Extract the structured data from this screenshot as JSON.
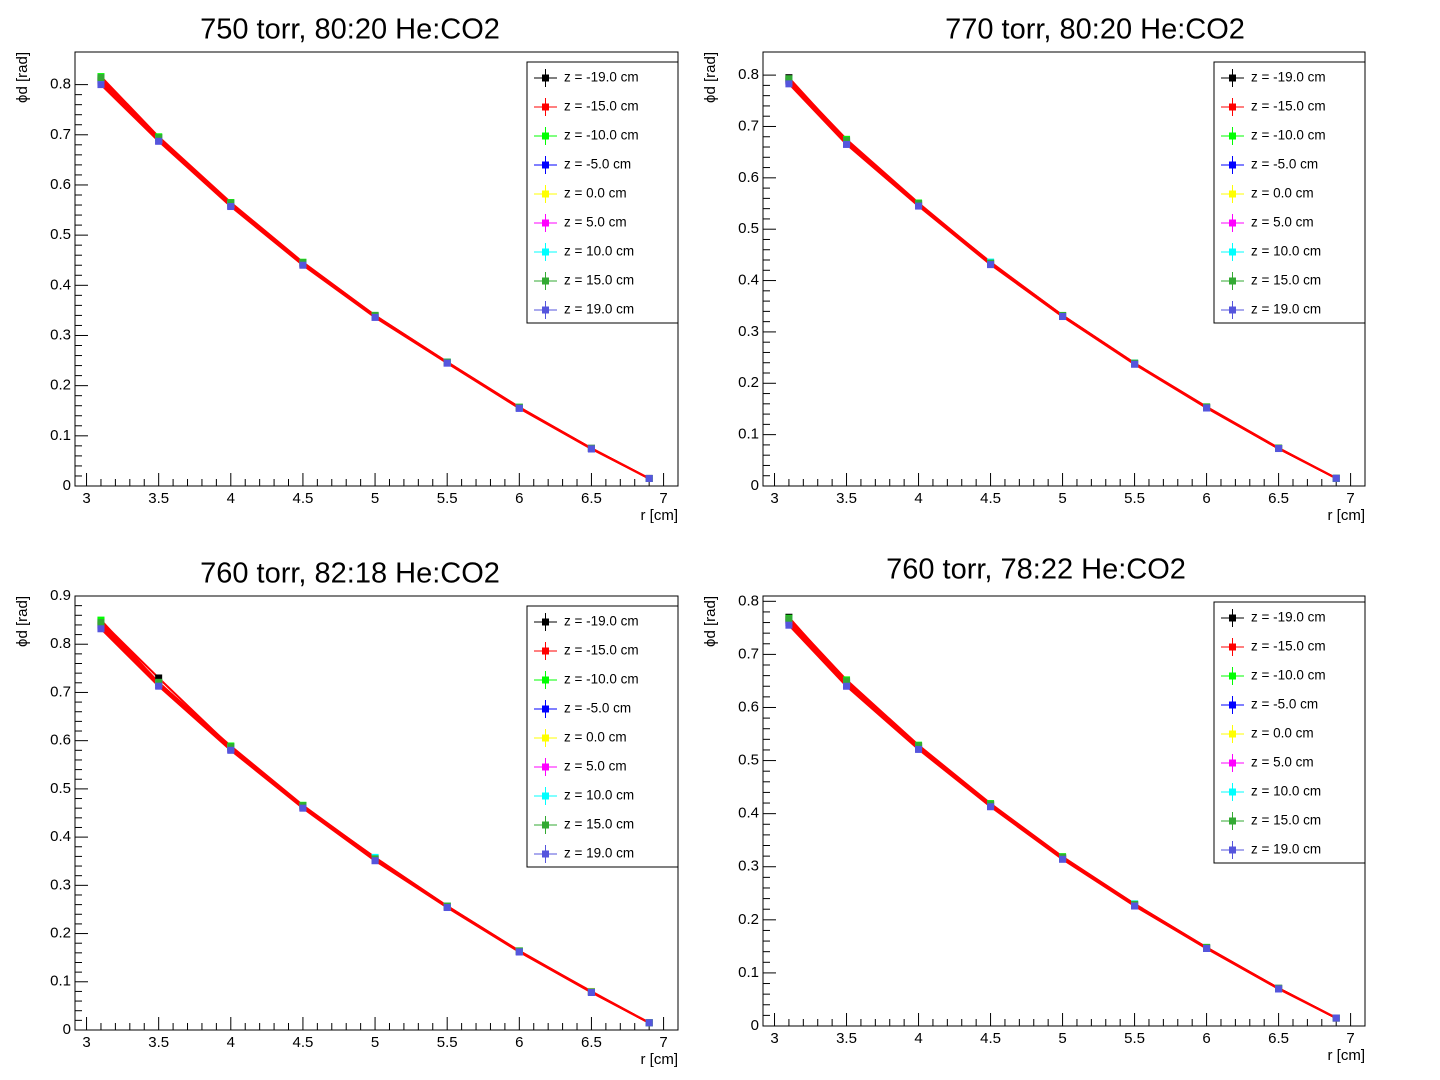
{
  "chart_data": [
    {
      "type": "scatter",
      "title": "750 torr, 80:20 He:CO2",
      "x_label": "r [cm]",
      "y_label": "ϕd [rad]",
      "x": [
        3.1,
        3.5,
        4,
        4.5,
        5,
        5.5,
        6,
        6.5,
        6.9
      ],
      "xlim": [
        2.92,
        7.1
      ],
      "ylim": [
        0,
        0.865
      ],
      "xticks": [
        3,
        3.5,
        4,
        4.5,
        5,
        5.5,
        6,
        6.5,
        7
      ],
      "yticks": [
        0,
        0.1,
        0.2,
        0.3,
        0.4,
        0.5,
        0.6,
        0.7,
        0.8
      ],
      "series": [
        {
          "name": "z = -19.0 cm",
          "color": "#000000",
          "values": [
            0.812,
            0.695,
            0.562,
            0.444,
            0.339,
            0.246,
            0.156,
            0.075,
            0.015
          ]
        },
        {
          "name": "z = -15.0 cm",
          "color": "#ff0000",
          "values": [
            0.808,
            0.691,
            0.56,
            0.443,
            0.338,
            0.246,
            0.156,
            0.075,
            0.015
          ]
        },
        {
          "name": "z = -10.0 cm",
          "color": "#00ff00",
          "values": [
            0.816,
            0.696,
            0.565,
            0.446,
            0.34,
            0.247,
            0.157,
            0.075,
            0.015
          ]
        },
        {
          "name": "z = -5.0 cm",
          "color": "#0000ff",
          "values": [
            0.805,
            0.688,
            0.558,
            0.441,
            0.337,
            0.245,
            0.155,
            0.074,
            0.015
          ]
        },
        {
          "name": "z = 0.0 cm",
          "color": "#ffff00",
          "values": [
            0.81,
            0.69,
            0.561,
            0.443,
            0.338,
            0.246,
            0.156,
            0.075,
            0.015
          ]
        },
        {
          "name": "z = 5.0 cm",
          "color": "#ff00ff",
          "values": [
            0.809,
            0.69,
            0.56,
            0.442,
            0.338,
            0.246,
            0.156,
            0.075,
            0.015
          ]
        },
        {
          "name": "z = 10.0 cm",
          "color": "#00ffff",
          "values": [
            0.811,
            0.692,
            0.562,
            0.444,
            0.339,
            0.247,
            0.156,
            0.075,
            0.015
          ]
        },
        {
          "name": "z = 15.0 cm",
          "color": "#33aa33",
          "values": [
            0.814,
            0.694,
            0.564,
            0.445,
            0.34,
            0.247,
            0.157,
            0.075,
            0.015
          ]
        },
        {
          "name": "z = 19.0 cm",
          "color": "#5555dd",
          "values": [
            0.8,
            0.687,
            0.557,
            0.44,
            0.336,
            0.245,
            0.155,
            0.074,
            0.015
          ]
        }
      ]
    },
    {
      "type": "scatter",
      "title": "770 torr, 80:20 He:CO2",
      "x_label": "r [cm]",
      "y_label": "ϕd [rad]",
      "x": [
        3.1,
        3.5,
        4,
        4.5,
        5,
        5.5,
        6,
        6.5,
        6.9
      ],
      "xlim": [
        2.92,
        7.1
      ],
      "ylim": [
        0,
        0.845
      ],
      "xticks": [
        3,
        3.5,
        4,
        4.5,
        5,
        5.5,
        6,
        6.5,
        7
      ],
      "yticks": [
        0,
        0.1,
        0.2,
        0.3,
        0.4,
        0.5,
        0.6,
        0.7,
        0.8
      ],
      "series": [
        {
          "name": "z = -19.0 cm",
          "color": "#000000",
          "values": [
            0.795,
            0.672,
            0.55,
            0.434,
            0.332,
            0.239,
            0.153,
            0.073,
            0.015
          ]
        },
        {
          "name": "z = -15.0 cm",
          "color": "#ff0000",
          "values": [
            0.79,
            0.668,
            0.548,
            0.433,
            0.331,
            0.238,
            0.153,
            0.073,
            0.015
          ]
        },
        {
          "name": "z = -10.0 cm",
          "color": "#00ff00",
          "values": [
            0.792,
            0.675,
            0.551,
            0.435,
            0.332,
            0.239,
            0.154,
            0.074,
            0.015
          ]
        },
        {
          "name": "z = -5.0 cm",
          "color": "#0000ff",
          "values": [
            0.788,
            0.666,
            0.546,
            0.432,
            0.33,
            0.238,
            0.152,
            0.073,
            0.015
          ]
        },
        {
          "name": "z = 0.0 cm",
          "color": "#ffff00",
          "values": [
            0.79,
            0.67,
            0.548,
            0.433,
            0.331,
            0.238,
            0.153,
            0.073,
            0.015
          ]
        },
        {
          "name": "z = 5.0 cm",
          "color": "#ff00ff",
          "values": [
            0.789,
            0.669,
            0.547,
            0.433,
            0.331,
            0.238,
            0.153,
            0.073,
            0.015
          ]
        },
        {
          "name": "z = 10.0 cm",
          "color": "#00ffff",
          "values": [
            0.791,
            0.671,
            0.549,
            0.436,
            0.332,
            0.239,
            0.153,
            0.073,
            0.015
          ]
        },
        {
          "name": "z = 15.0 cm",
          "color": "#33aa33",
          "values": [
            0.793,
            0.673,
            0.55,
            0.434,
            0.332,
            0.239,
            0.154,
            0.074,
            0.015
          ]
        },
        {
          "name": "z = 19.0 cm",
          "color": "#5555dd",
          "values": [
            0.783,
            0.665,
            0.545,
            0.431,
            0.33,
            0.237,
            0.152,
            0.073,
            0.015
          ]
        }
      ]
    },
    {
      "type": "scatter",
      "title": "760 torr, 82:18 He:CO2",
      "x_label": "r [cm]",
      "y_label": "ϕd [rad]",
      "x": [
        3.1,
        3.5,
        4,
        4.5,
        5,
        5.5,
        6,
        6.5,
        6.9
      ],
      "xlim": [
        2.92,
        7.1
      ],
      "ylim": [
        0,
        0.9
      ],
      "xticks": [
        3,
        3.5,
        4,
        4.5,
        5,
        5.5,
        6,
        6.5,
        7
      ],
      "yticks": [
        0,
        0.1,
        0.2,
        0.3,
        0.4,
        0.5,
        0.6,
        0.7,
        0.8,
        0.9
      ],
      "series": [
        {
          "name": "z = -19.0 cm",
          "color": "#000000",
          "values": [
            0.848,
            0.73,
            0.587,
            0.465,
            0.355,
            0.257,
            0.163,
            0.079,
            0.015
          ]
        },
        {
          "name": "z = -15.0 cm",
          "color": "#ff0000",
          "values": [
            0.84,
            0.718,
            0.585,
            0.463,
            0.354,
            0.256,
            0.163,
            0.079,
            0.015
          ]
        },
        {
          "name": "z = -10.0 cm",
          "color": "#00ff00",
          "values": [
            0.85,
            0.72,
            0.589,
            0.466,
            0.357,
            0.257,
            0.164,
            0.079,
            0.015
          ]
        },
        {
          "name": "z = -5.0 cm",
          "color": "#0000ff",
          "values": [
            0.836,
            0.715,
            0.582,
            0.461,
            0.352,
            0.255,
            0.162,
            0.078,
            0.015
          ]
        },
        {
          "name": "z = 0.0 cm",
          "color": "#ffff00",
          "values": [
            0.841,
            0.718,
            0.585,
            0.463,
            0.354,
            0.256,
            0.163,
            0.08,
            0.015
          ]
        },
        {
          "name": "z = 5.0 cm",
          "color": "#ff00ff",
          "values": [
            0.839,
            0.717,
            0.584,
            0.462,
            0.354,
            0.256,
            0.163,
            0.079,
            0.015
          ]
        },
        {
          "name": "z = 10.0 cm",
          "color": "#00ffff",
          "values": [
            0.842,
            0.719,
            0.586,
            0.464,
            0.358,
            0.257,
            0.163,
            0.079,
            0.015
          ]
        },
        {
          "name": "z = 15.0 cm",
          "color": "#33aa33",
          "values": [
            0.845,
            0.721,
            0.587,
            0.465,
            0.355,
            0.257,
            0.164,
            0.079,
            0.015
          ]
        },
        {
          "name": "z = 19.0 cm",
          "color": "#5555dd",
          "values": [
            0.832,
            0.713,
            0.58,
            0.46,
            0.351,
            0.254,
            0.162,
            0.078,
            0.015
          ]
        }
      ]
    },
    {
      "type": "scatter",
      "title": "760 torr, 78:22 He:CO2",
      "x_label": "r [cm]",
      "y_label": "ϕd [rad]",
      "x": [
        3.1,
        3.5,
        4,
        4.5,
        5,
        5.5,
        6,
        6.5,
        6.9
      ],
      "xlim": [
        2.92,
        7.1
      ],
      "ylim": [
        0,
        0.81
      ],
      "xticks": [
        3,
        3.5,
        4,
        4.5,
        5,
        5.5,
        6,
        6.5,
        7
      ],
      "yticks": [
        0,
        0.1,
        0.2,
        0.3,
        0.4,
        0.5,
        0.6,
        0.7,
        0.8
      ],
      "series": [
        {
          "name": "z = -19.0 cm",
          "color": "#000000",
          "values": [
            0.77,
            0.648,
            0.527,
            0.417,
            0.317,
            0.229,
            0.147,
            0.071,
            0.015
          ]
        },
        {
          "name": "z = -15.0 cm",
          "color": "#ff0000",
          "values": [
            0.765,
            0.645,
            0.526,
            0.416,
            0.316,
            0.228,
            0.147,
            0.071,
            0.015
          ]
        },
        {
          "name": "z = -10.0 cm",
          "color": "#00ff00",
          "values": [
            0.768,
            0.652,
            0.529,
            0.419,
            0.319,
            0.23,
            0.148,
            0.071,
            0.015
          ]
        },
        {
          "name": "z = -5.0 cm",
          "color": "#0000ff",
          "values": [
            0.76,
            0.642,
            0.523,
            0.414,
            0.315,
            0.227,
            0.146,
            0.07,
            0.015
          ]
        },
        {
          "name": "z = 0.0 cm",
          "color": "#ffff00",
          "values": [
            0.765,
            0.646,
            0.526,
            0.416,
            0.316,
            0.228,
            0.147,
            0.071,
            0.015
          ]
        },
        {
          "name": "z = 5.0 cm",
          "color": "#ff00ff",
          "values": [
            0.764,
            0.645,
            0.525,
            0.416,
            0.316,
            0.228,
            0.147,
            0.071,
            0.015
          ]
        },
        {
          "name": "z = 10.0 cm",
          "color": "#00ffff",
          "values": [
            0.766,
            0.647,
            0.527,
            0.417,
            0.317,
            0.23,
            0.148,
            0.071,
            0.015
          ]
        },
        {
          "name": "z = 15.0 cm",
          "color": "#33aa33",
          "values": [
            0.767,
            0.65,
            0.528,
            0.418,
            0.318,
            0.229,
            0.148,
            0.071,
            0.015
          ]
        },
        {
          "name": "z = 19.0 cm",
          "color": "#5555dd",
          "values": [
            0.755,
            0.64,
            0.521,
            0.413,
            0.314,
            0.226,
            0.146,
            0.07,
            0.015
          ]
        }
      ]
    }
  ]
}
